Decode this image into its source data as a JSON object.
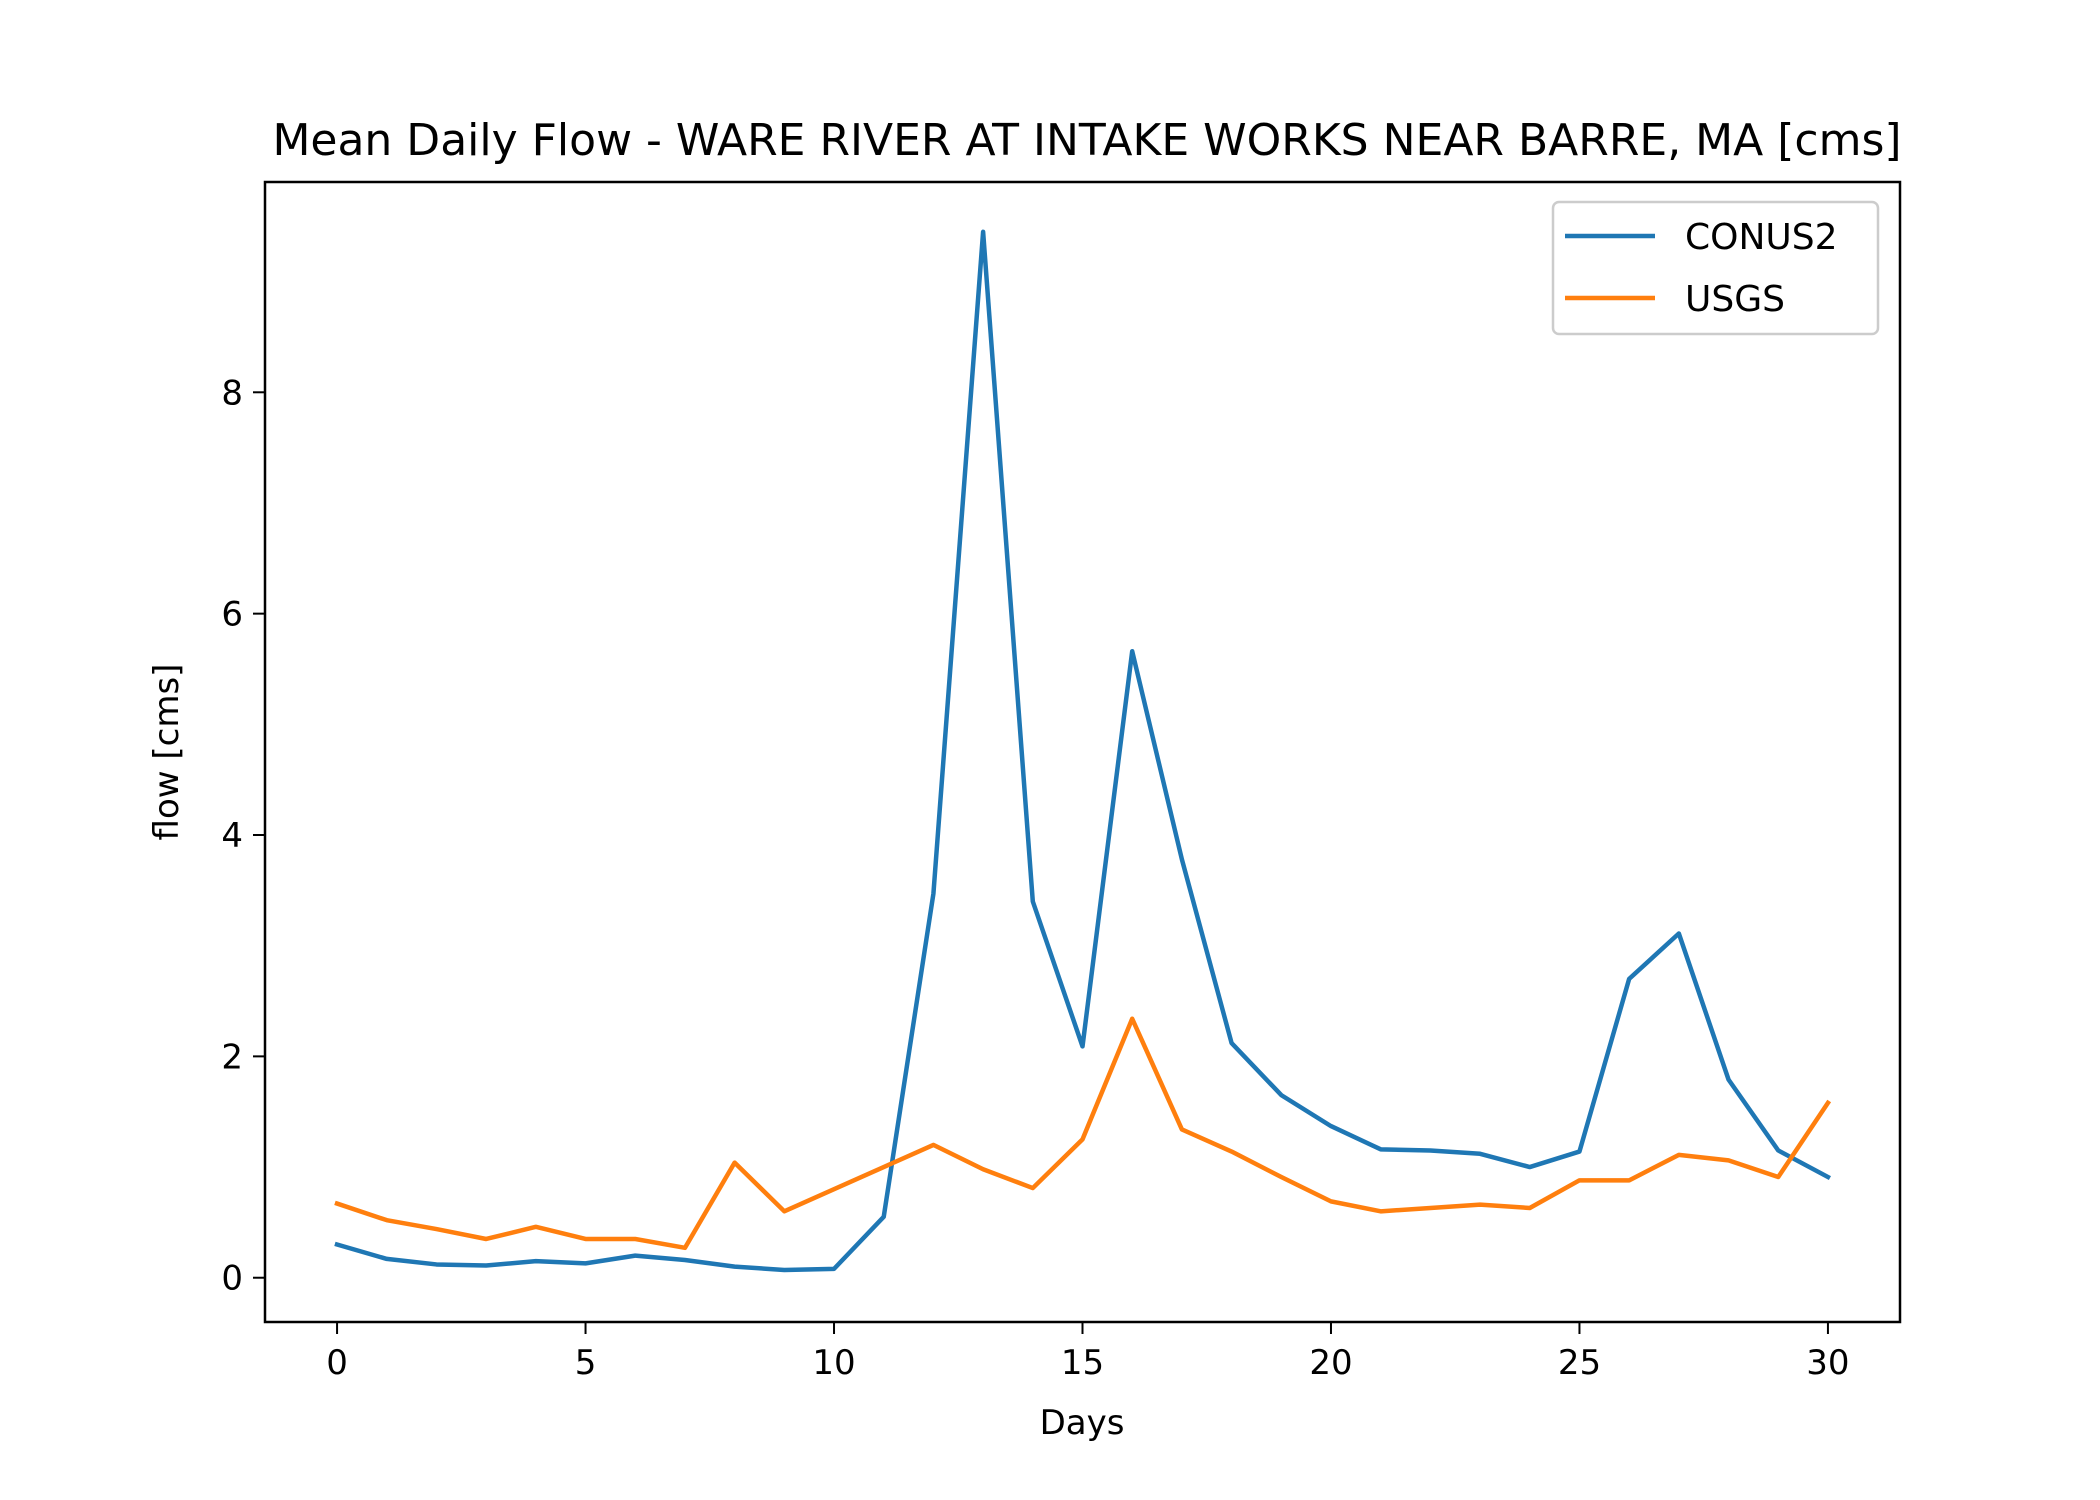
{
  "chart_data": {
    "type": "line",
    "title": "Mean Daily Flow - WARE RIVER AT INTAKE WORKS NEAR BARRE, MA [cms]",
    "xlabel": "Days",
    "ylabel": "flow [cms]",
    "xlim": [
      -1.45,
      31.45
    ],
    "ylim": [
      -0.4,
      9.9
    ],
    "xticks": [
      0,
      5,
      10,
      15,
      20,
      25,
      30
    ],
    "yticks": [
      0,
      2,
      4,
      6,
      8
    ],
    "grid": false,
    "legend_position": "top-right",
    "x": [
      0,
      1,
      2,
      3,
      4,
      5,
      6,
      7,
      8,
      9,
      10,
      11,
      12,
      13,
      14,
      15,
      16,
      17,
      18,
      19,
      20,
      21,
      22,
      23,
      24,
      25,
      26,
      27,
      28,
      29,
      30
    ],
    "series": [
      {
        "name": "CONUS2",
        "color": "#1f77b4",
        "values": [
          0.3,
          0.17,
          0.12,
          0.11,
          0.15,
          0.13,
          0.2,
          0.16,
          0.1,
          0.07,
          0.08,
          0.55,
          3.47,
          9.45,
          3.4,
          2.09,
          5.66,
          3.78,
          2.12,
          1.65,
          1.37,
          1.16,
          1.15,
          1.12,
          1.0,
          1.14,
          2.7,
          3.11,
          1.79,
          1.15,
          0.91
        ]
      },
      {
        "name": "USGS",
        "color": "#ff7f0e",
        "values": [
          0.67,
          0.52,
          0.44,
          0.35,
          0.46,
          0.35,
          0.35,
          0.27,
          1.04,
          0.6,
          0.8,
          1.0,
          1.2,
          0.98,
          0.81,
          1.25,
          2.34,
          1.34,
          1.14,
          0.91,
          0.69,
          0.6,
          0.63,
          0.66,
          0.63,
          0.88,
          0.88,
          1.11,
          1.06,
          0.91,
          1.58
        ]
      }
    ]
  }
}
